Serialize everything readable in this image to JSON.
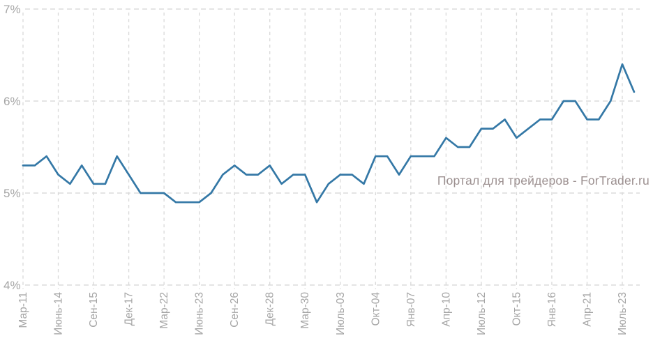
{
  "watermark": "Портал для трейдеров - ForTrader.ru",
  "colors": {
    "background": "#ffffff",
    "line": "#3478a6",
    "grid_horizontal": "#dcdcdc",
    "grid_vertical": "#d9d9d9",
    "axis_label": "#a5a5a5",
    "watermark": "#9c9090"
  },
  "chart_data": {
    "type": "line",
    "title": "",
    "xlabel": "",
    "ylabel": "",
    "legend": "none",
    "grid": "dashed",
    "ylim": [
      4,
      7
    ],
    "y_ticks": [
      {
        "label": "7%",
        "value": 7
      },
      {
        "label": "6%",
        "value": 6
      },
      {
        "label": "5%",
        "value": 5
      },
      {
        "label": "4%",
        "value": 4
      }
    ],
    "x_labels": [
      "Мар-11",
      "Июнь-14",
      "Сен-15",
      "Дек-17",
      "Мар-22",
      "Июнь-23",
      "Сен-26",
      "Дек-28",
      "Мар-30",
      "Июль-03",
      "Окт-04",
      "Янв-07",
      "Апр-10",
      "Июль-12",
      "Окт-15",
      "Янв-16",
      "Апр-21",
      "Июль-23"
    ],
    "points_per_label_interval": 3,
    "values": [
      5.3,
      5.3,
      5.4,
      5.2,
      5.1,
      5.3,
      5.1,
      5.1,
      5.4,
      5.2,
      5.0,
      5.0,
      5.0,
      4.9,
      4.9,
      4.9,
      5.0,
      5.2,
      5.3,
      5.2,
      5.2,
      5.3,
      5.1,
      5.2,
      5.2,
      4.9,
      5.1,
      5.2,
      5.2,
      5.1,
      5.4,
      5.4,
      5.2,
      5.4,
      5.4,
      5.4,
      5.6,
      5.5,
      5.5,
      5.7,
      5.7,
      5.8,
      5.6,
      5.7,
      5.8,
      5.8,
      6.0,
      6.0,
      5.8,
      5.8,
      6.0,
      6.4,
      6.1
    ]
  }
}
